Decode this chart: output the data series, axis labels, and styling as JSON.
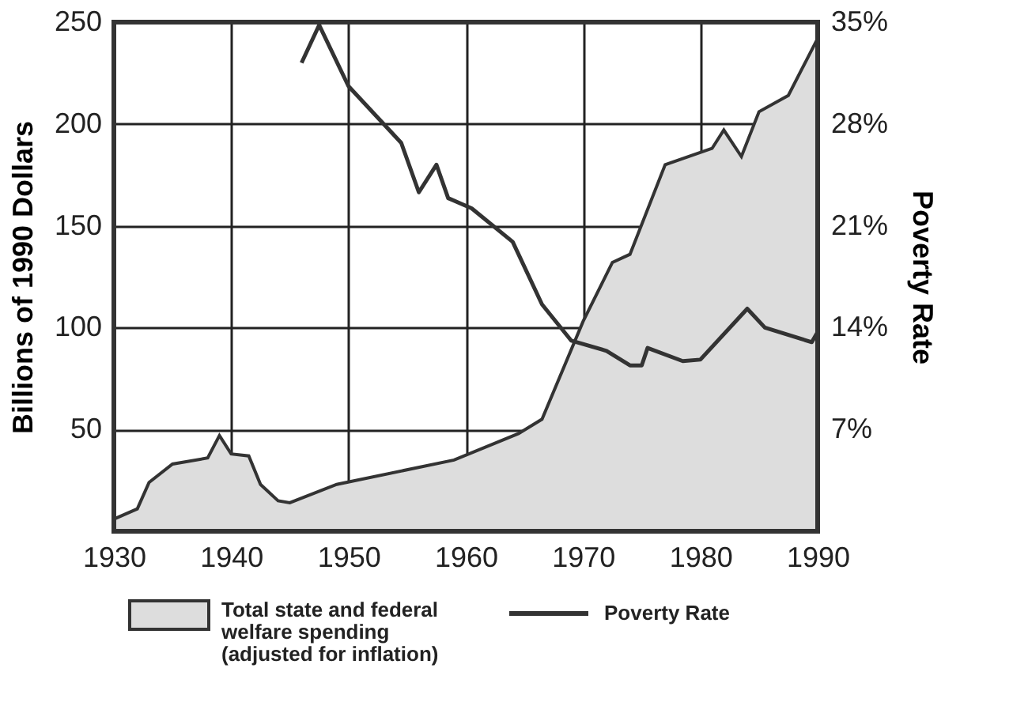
{
  "chart_data": {
    "type": "area",
    "xlim": [
      1930,
      1990
    ],
    "xticks": [
      1930,
      1940,
      1950,
      1960,
      1970,
      1980,
      1990
    ],
    "ylim": [
      0,
      250
    ],
    "yticks": [
      50,
      100,
      150,
      200,
      250
    ],
    "y2lim": [
      0,
      35
    ],
    "y2ticks": [
      {
        "value": 7,
        "label": "7%"
      },
      {
        "value": 14,
        "label": "14%"
      },
      {
        "value": 21,
        "label": "21%"
      },
      {
        "value": 28,
        "label": "28%"
      },
      {
        "value": 35,
        "label": "35%"
      }
    ],
    "ylabel": "Billions of 1990 Dollars",
    "y2label": "Poverty Rate",
    "grid": true,
    "legend": "bottom",
    "series": [
      {
        "name": "Total state and federal\nwelfare spending\n(adjusted for inflation)",
        "color": "#dddddd",
        "x": [
          1930,
          1932,
          1933,
          1935,
          1938,
          1939,
          1940,
          1941.5,
          1942.5,
          1944,
          1945,
          1949,
          1959,
          1964.5,
          1966.5,
          1970,
          1972.5,
          1974,
          1977,
          1981,
          1982,
          1983.5,
          1985,
          1987.5,
          1990
        ],
        "values": [
          6,
          11,
          24,
          33,
          36,
          47,
          38,
          37,
          23,
          15,
          14,
          23,
          35,
          48,
          55,
          103,
          132,
          136,
          180,
          188,
          197,
          184,
          206,
          214,
          242
        ]
      },
      {
        "name": "Poverty Rate",
        "type": "line",
        "line_style": "solid",
        "axis": "y2",
        "color": "#333333",
        "x": [
          1946,
          1947.5,
          1950,
          1954.5,
          1956,
          1957.5,
          1958.5,
          1960.5,
          1964,
          1966.5,
          1969,
          1972,
          1974,
          1975,
          1975.5,
          1978.5,
          1980,
          1984,
          1985.5,
          1989.5,
          1990
        ],
        "values": [
          32.2,
          34.8,
          30.6,
          26.7,
          23.3,
          25.2,
          22.9,
          22.2,
          19.9,
          15.6,
          13.1,
          12.4,
          11.4,
          11.4,
          12.6,
          11.7,
          11.8,
          15.3,
          14.0,
          13.0,
          13.7
        ]
      }
    ]
  }
}
